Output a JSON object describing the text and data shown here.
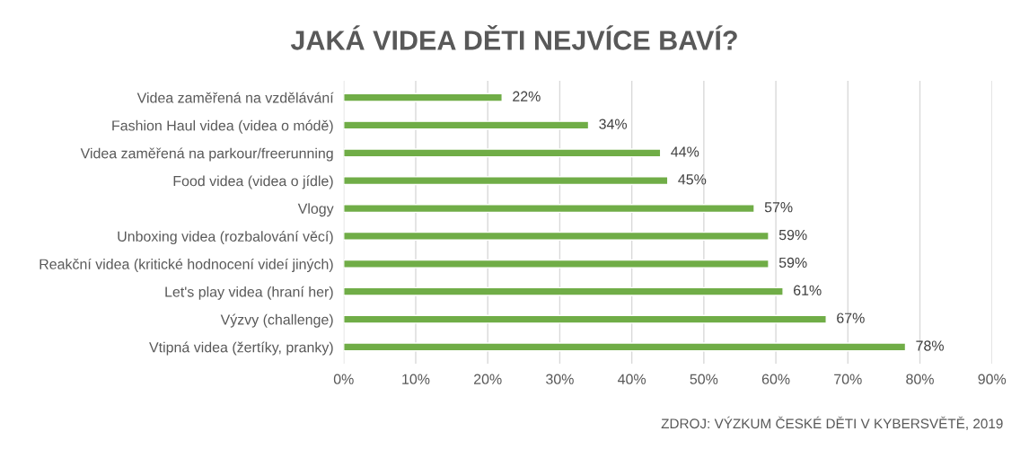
{
  "chart_data": {
    "type": "bar",
    "orientation": "horizontal",
    "title": "JAKÁ VIDEA DĚTI NEJVÍCE BAVÍ?",
    "categories": [
      "Videa zaměřená na vzdělávání",
      "Fashion Haul videa (videa o módě)",
      "Videa zaměřená na parkour/freerunning",
      "Food videa (videa o jídle)",
      "Vlogy",
      "Unboxing videa (rozbalování věcí)",
      "Reakční videa (kritické hodnocení videí jiných)",
      "Let's play videa (hraní her)",
      "Výzvy (challenge)",
      "Vtipná videa (žertíky, pranky)"
    ],
    "values": [
      22,
      34,
      44,
      45,
      57,
      59,
      59,
      61,
      67,
      78
    ],
    "value_labels": [
      "22%",
      "34%",
      "44%",
      "45%",
      "57%",
      "59%",
      "59%",
      "61%",
      "67%",
      "78%"
    ],
    "color": "#70ad47",
    "xlim": [
      0,
      90
    ],
    "xticks": [
      {
        "value": 0,
        "label": "0%"
      },
      {
        "value": 10,
        "label": "10%"
      },
      {
        "value": 20,
        "label": "20%"
      },
      {
        "value": 30,
        "label": "30%"
      },
      {
        "value": 40,
        "label": "40%"
      },
      {
        "value": 50,
        "label": "50%"
      },
      {
        "value": 60,
        "label": "60%"
      },
      {
        "value": 70,
        "label": "70%"
      },
      {
        "value": 80,
        "label": "80%"
      },
      {
        "value": 90,
        "label": "90%"
      }
    ],
    "grid": "x",
    "legend": false,
    "annotations": [
      "ZDROJ: VÝZKUM ČESKÉ DĚTI V KYBERSVĚTĚ, 2019"
    ]
  }
}
